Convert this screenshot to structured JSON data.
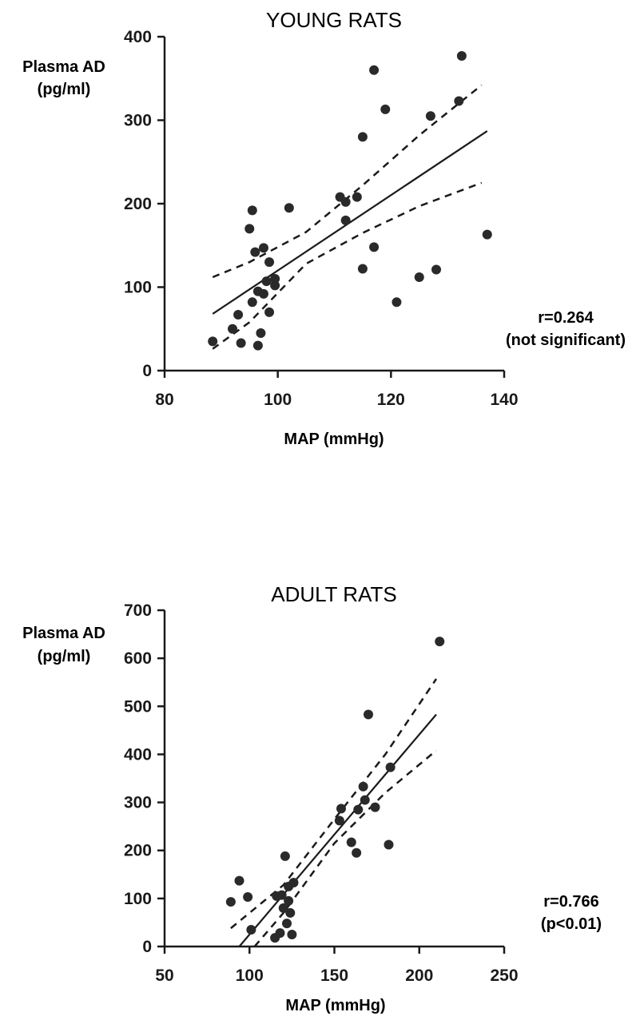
{
  "chart_data": [
    {
      "type": "scatter",
      "title": "YOUNG RATS",
      "ylabel_line1": "Plasma AD",
      "ylabel_line2": "(pg/ml)",
      "xlabel": "MAP  (mmHg)",
      "xlim": [
        80,
        140
      ],
      "ylim": [
        0,
        400
      ],
      "xticks": [
        80,
        100,
        120,
        140
      ],
      "yticks": [
        0,
        100,
        200,
        300,
        400
      ],
      "stat_line1": "r=0.264",
      "stat_line2": "(not significant)",
      "points": [
        {
          "x": 88.5,
          "y": 35
        },
        {
          "x": 92,
          "y": 50
        },
        {
          "x": 93,
          "y": 67
        },
        {
          "x": 93.5,
          "y": 33
        },
        {
          "x": 95,
          "y": 170
        },
        {
          "x": 95.5,
          "y": 192
        },
        {
          "x": 95.5,
          "y": 82
        },
        {
          "x": 96,
          "y": 142
        },
        {
          "x": 96.5,
          "y": 95
        },
        {
          "x": 96.5,
          "y": 30
        },
        {
          "x": 97,
          "y": 45
        },
        {
          "x": 97.5,
          "y": 92
        },
        {
          "x": 97.5,
          "y": 147
        },
        {
          "x": 98,
          "y": 107
        },
        {
          "x": 98.5,
          "y": 70
        },
        {
          "x": 98.5,
          "y": 130
        },
        {
          "x": 99.5,
          "y": 102
        },
        {
          "x": 99.5,
          "y": 110
        },
        {
          "x": 102,
          "y": 195
        },
        {
          "x": 111,
          "y": 208
        },
        {
          "x": 112,
          "y": 180
        },
        {
          "x": 112,
          "y": 202
        },
        {
          "x": 114,
          "y": 208
        },
        {
          "x": 115,
          "y": 280
        },
        {
          "x": 115,
          "y": 122
        },
        {
          "x": 117,
          "y": 360
        },
        {
          "x": 117,
          "y": 148
        },
        {
          "x": 119,
          "y": 313
        },
        {
          "x": 121,
          "y": 82
        },
        {
          "x": 125,
          "y": 112
        },
        {
          "x": 127,
          "y": 305
        },
        {
          "x": 128,
          "y": 121
        },
        {
          "x": 132,
          "y": 323
        },
        {
          "x": 132.5,
          "y": 377
        },
        {
          "x": 137,
          "y": 163
        }
      ],
      "fit_line": [
        {
          "x": 88.5,
          "y": 68
        },
        {
          "x": 137,
          "y": 287
        }
      ],
      "ci_upper": [
        {
          "x": 88.5,
          "y": 112
        },
        {
          "x": 95,
          "y": 130
        },
        {
          "x": 105,
          "y": 166
        },
        {
          "x": 115,
          "y": 222
        },
        {
          "x": 125,
          "y": 282
        },
        {
          "x": 136,
          "y": 342
        }
      ],
      "ci_lower": [
        {
          "x": 88.5,
          "y": 26
        },
        {
          "x": 95,
          "y": 58
        },
        {
          "x": 105,
          "y": 128
        },
        {
          "x": 115,
          "y": 165
        },
        {
          "x": 125,
          "y": 197
        },
        {
          "x": 136,
          "y": 225
        }
      ]
    },
    {
      "type": "scatter",
      "title": "ADULT RATS",
      "ylabel_line1": "Plasma AD",
      "ylabel_line2": "(pg/ml)",
      "xlabel": "MAP  (mmHg)",
      "xlim": [
        50,
        250
      ],
      "ylim": [
        0,
        700
      ],
      "xticks": [
        50,
        100,
        150,
        200,
        250
      ],
      "yticks": [
        0,
        100,
        200,
        300,
        400,
        500,
        600,
        700
      ],
      "stat_line1": "r=0.766",
      "stat_line2": "(p<0.01)",
      "points": [
        {
          "x": 89,
          "y": 93
        },
        {
          "x": 94,
          "y": 137
        },
        {
          "x": 99,
          "y": 103
        },
        {
          "x": 101,
          "y": 35
        },
        {
          "x": 115,
          "y": 18
        },
        {
          "x": 116,
          "y": 105
        },
        {
          "x": 118,
          "y": 28
        },
        {
          "x": 119,
          "y": 107
        },
        {
          "x": 120,
          "y": 80
        },
        {
          "x": 121,
          "y": 188
        },
        {
          "x": 122,
          "y": 48
        },
        {
          "x": 123,
          "y": 125
        },
        {
          "x": 123,
          "y": 95
        },
        {
          "x": 124,
          "y": 70
        },
        {
          "x": 125,
          "y": 25
        },
        {
          "x": 126,
          "y": 133
        },
        {
          "x": 153,
          "y": 262
        },
        {
          "x": 154,
          "y": 287
        },
        {
          "x": 160,
          "y": 217
        },
        {
          "x": 163,
          "y": 195
        },
        {
          "x": 164,
          "y": 285
        },
        {
          "x": 167,
          "y": 333
        },
        {
          "x": 168,
          "y": 305
        },
        {
          "x": 170,
          "y": 483
        },
        {
          "x": 174,
          "y": 290
        },
        {
          "x": 182,
          "y": 212
        },
        {
          "x": 183,
          "y": 373
        },
        {
          "x": 212,
          "y": 635
        }
      ],
      "fit_line": [
        {
          "x": 94,
          "y": 0
        },
        {
          "x": 210,
          "y": 483
        }
      ],
      "ci_upper": [
        {
          "x": 89,
          "y": 38
        },
        {
          "x": 120,
          "y": 128
        },
        {
          "x": 150,
          "y": 265
        },
        {
          "x": 180,
          "y": 400
        },
        {
          "x": 210,
          "y": 557
        }
      ],
      "ci_lower": [
        {
          "x": 103,
          "y": 0
        },
        {
          "x": 120,
          "y": 70
        },
        {
          "x": 150,
          "y": 215
        },
        {
          "x": 180,
          "y": 320
        },
        {
          "x": 210,
          "y": 408
        }
      ]
    }
  ]
}
